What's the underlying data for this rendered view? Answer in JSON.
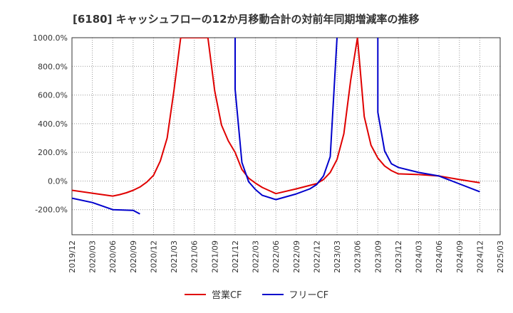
{
  "chart_data": {
    "type": "line",
    "title": "[6180]  キャッシュフローの12か月移動合計の対前年同期増減率の推移",
    "xlabel": "",
    "ylabel": "",
    "ylim": [
      -375,
      1000
    ],
    "yticks": [
      1000,
      800,
      600,
      400,
      200,
      0,
      -200
    ],
    "ytick_labels": [
      "1000.0%",
      "800.0%",
      "600.0%",
      "400.0%",
      "200.0%",
      "0.0%",
      "-200.0%"
    ],
    "x_tick_labels": [
      "2019/12",
      "2020/03",
      "2020/06",
      "2020/09",
      "2020/12",
      "2021/03",
      "2021/06",
      "2021/09",
      "2021/12",
      "2022/03",
      "2022/06",
      "2022/09",
      "2022/12",
      "2023/03",
      "2023/06",
      "2023/09",
      "2023/12",
      "2024/03",
      "2024/06",
      "2024/09",
      "2024/12",
      "2025/03"
    ],
    "grid": true,
    "legend_position": "bottom",
    "series": [
      {
        "name": "営業CF",
        "color": "#e00000",
        "points": [
          [
            "2019-12",
            -65
          ],
          [
            "2020-03",
            -85
          ],
          [
            "2020-06",
            -105
          ],
          [
            "2020-07",
            -95
          ],
          [
            "2020-08",
            -82
          ],
          [
            "2020-09",
            -65
          ],
          [
            "2020-10",
            -42
          ],
          [
            "2020-11",
            -8
          ],
          [
            "2020-12",
            40
          ],
          [
            "2021-01",
            140
          ],
          [
            "2021-02",
            300
          ],
          [
            "2021-03",
            630
          ],
          [
            "2021-04",
            1000
          ],
          [
            "2021-08",
            1000
          ],
          [
            "2021-09",
            630
          ],
          [
            "2021-10",
            390
          ],
          [
            "2021-11",
            280
          ],
          [
            "2021-12",
            200
          ],
          [
            "2022-01",
            80
          ],
          [
            "2022-02",
            20
          ],
          [
            "2022-03",
            -15
          ],
          [
            "2022-04",
            -45
          ],
          [
            "2022-06",
            -88
          ],
          [
            "2022-09",
            -55
          ],
          [
            "2022-12",
            -18
          ],
          [
            "2023-01",
            10
          ],
          [
            "2023-02",
            60
          ],
          [
            "2023-03",
            150
          ],
          [
            "2023-04",
            330
          ],
          [
            "2023-05",
            700
          ],
          [
            "2023-06",
            1000
          ],
          [
            "2023-07",
            450
          ],
          [
            "2023-08",
            250
          ],
          [
            "2023-09",
            160
          ],
          [
            "2023-10",
            105
          ],
          [
            "2023-11",
            72
          ],
          [
            "2023-12",
            50
          ],
          [
            "2024-03",
            45
          ],
          [
            "2024-06",
            35
          ],
          [
            "2024-09",
            10
          ],
          [
            "2024-12",
            -12
          ]
        ]
      },
      {
        "name": "フリーCF",
        "color": "#0000cc",
        "segments": [
          [
            [
              "2019-12",
              -120
            ],
            [
              "2020-03",
              -150
            ],
            [
              "2020-06",
              -200
            ],
            [
              "2020-09",
              -205
            ],
            [
              "2020-10",
              -230
            ]
          ],
          [
            [
              "2021-12",
              1000
            ],
            [
              "2021-12",
              640
            ],
            [
              "2022-01",
              130
            ],
            [
              "2022-02",
              -5
            ],
            [
              "2022-03",
              -60
            ],
            [
              "2022-04",
              -100
            ],
            [
              "2022-06",
              -130
            ],
            [
              "2022-09",
              -90
            ],
            [
              "2022-11",
              -55
            ],
            [
              "2022-12",
              -25
            ],
            [
              "2023-01",
              35
            ],
            [
              "2023-02",
              170
            ],
            [
              "2023-03",
              1000
            ]
          ],
          [
            [
              "2023-09",
              1000
            ],
            [
              "2023-09",
              480
            ],
            [
              "2023-10",
              210
            ],
            [
              "2023-11",
              120
            ],
            [
              "2023-12",
              95
            ],
            [
              "2024-03",
              60
            ],
            [
              "2024-06",
              35
            ],
            [
              "2024-09",
              -20
            ],
            [
              "2024-12",
              -75
            ]
          ]
        ]
      }
    ]
  }
}
